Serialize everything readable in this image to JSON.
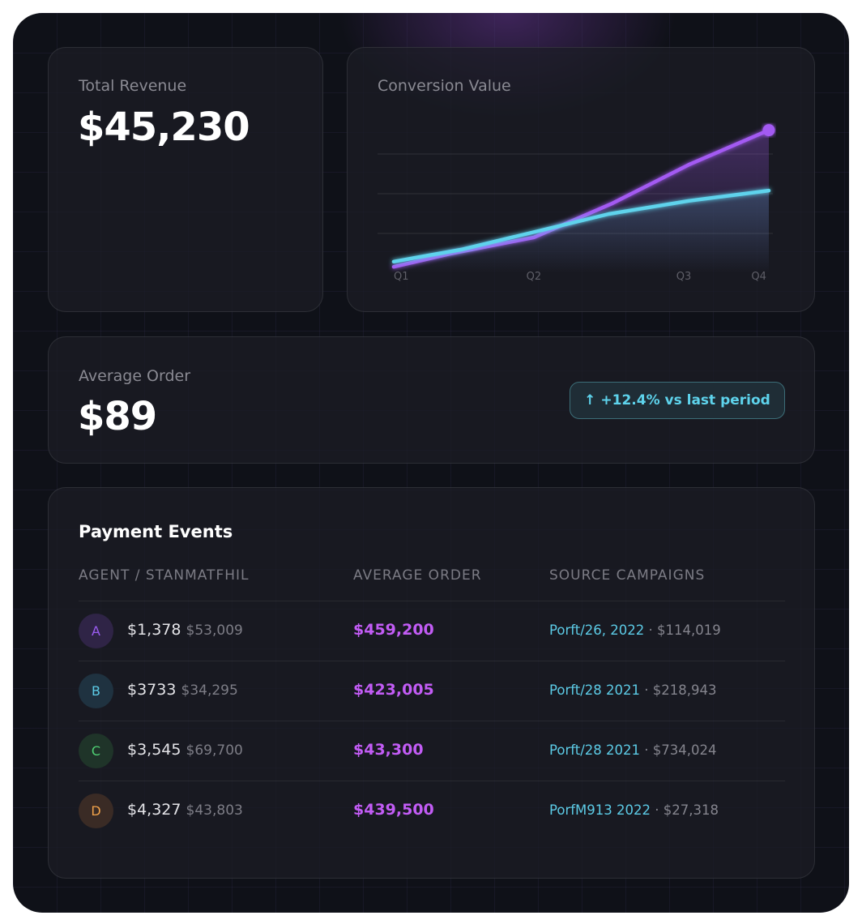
{
  "total_revenue": {
    "label": "Total Revenue",
    "value": "$45,230"
  },
  "conversion": {
    "title": "Conversion Value"
  },
  "average_order": {
    "label": "Average Order",
    "value": "$89",
    "badge_icon": "arrow-up-icon",
    "badge_arrow": "↑",
    "badge": "+12.4% vs last period"
  },
  "payments": {
    "title": "Payment Events",
    "columns": [
      "AGENT / STANMATFHIL",
      "AVERAGE ORDER",
      "SOURCE CAMPAIGNS"
    ],
    "rows": [
      {
        "initial": "A",
        "amount": "$1,378",
        "sub": "$53,009",
        "avg": "$459,200",
        "campaign": "Porft/26, 2022",
        "sep": " · ",
        "campaign_value": "$114,019",
        "color": "#9a5cf0",
        "bg": "#2f2446"
      },
      {
        "initial": "B",
        "amount": "$3733",
        "sub": "$34,295",
        "avg": "$423,005",
        "campaign": "Porft/28 2021",
        "sep": " · ",
        "campaign_value": "$218,943",
        "color": "#5ccbe6",
        "bg": "#1f3240"
      },
      {
        "initial": "C",
        "amount": "$3,545",
        "sub": "$69,700",
        "avg": "$43,300",
        "campaign": "Porft/28 2021",
        "sep": " · ",
        "campaign_value": "$734,024",
        "color": "#4fcf73",
        "bg": "#1f3429"
      },
      {
        "initial": "D",
        "amount": "$4,327",
        "sub": "$43,803",
        "avg": "$439,500",
        "campaign": "PorfM913 2022",
        "sep": " · ",
        "campaign_value": "$27,318",
        "color": "#f0a24a",
        "bg": "#3a2b25"
      }
    ]
  },
  "colors": {
    "purple": "#a35af2",
    "cyan": "#5ed3ec",
    "accent_text": "#c25cf5"
  },
  "chart_data": {
    "type": "line",
    "title": "Conversion Value",
    "xlabel": "",
    "ylabel": "",
    "x_ticks": [
      {
        "x": 1,
        "label": "Q1"
      },
      {
        "x": 2.12,
        "label": "Q2"
      },
      {
        "x": 3.32,
        "label": "Q3"
      },
      {
        "x": 3.92,
        "label": "Q4"
      }
    ],
    "xlim": [
      1,
      4
    ],
    "ylim": [
      0,
      4
    ],
    "grid": "horizontal",
    "legend": "none",
    "series": [
      {
        "color": "#a35af2",
        "x": [
          1,
          1.45,
          2.12,
          2.75,
          3.36,
          4
        ],
        "y": [
          0.16,
          0.49,
          0.9,
          1.76,
          2.73,
          3.6
        ],
        "end_marker": true
      },
      {
        "color": "#5ed3ec",
        "x": [
          1,
          1.55,
          2.13,
          2.72,
          3.36,
          4
        ],
        "y": [
          0.29,
          0.6,
          1.04,
          1.49,
          1.82,
          2.08
        ]
      }
    ]
  }
}
